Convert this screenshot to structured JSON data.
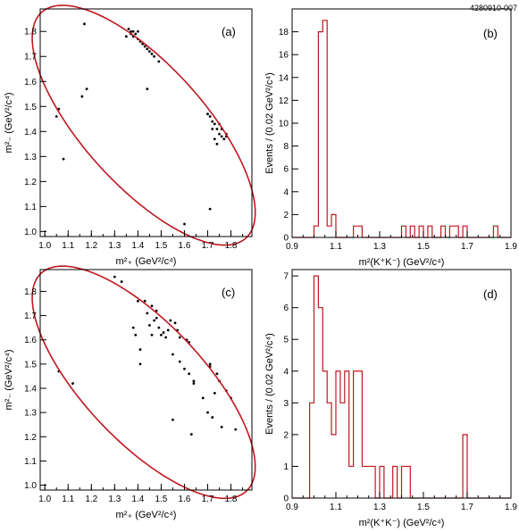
{
  "figure_id": "4280910-007",
  "chart_data": [
    {
      "panel": "(a)",
      "type": "scatter",
      "xlabel": "m²₊ (GeV²/c⁴)",
      "ylabel": "m²₋ (GeV²/c⁴)",
      "xlim": [
        0.98,
        1.89
      ],
      "ylim": [
        0.98,
        1.89
      ],
      "xticks": [
        "1.0",
        "1.1",
        "1.2",
        "1.3",
        "1.4",
        "1.5",
        "1.6",
        "1.7",
        "1.8"
      ],
      "yticks": [
        "1.0",
        "1.1",
        "1.2",
        "1.3",
        "1.4",
        "1.5",
        "1.6",
        "1.7",
        "1.8"
      ],
      "boundary_color": "#c0171f",
      "points": [
        [
          1.17,
          1.83
        ],
        [
          1.35,
          1.78
        ],
        [
          1.36,
          1.81
        ],
        [
          1.37,
          1.8
        ],
        [
          1.38,
          1.8
        ],
        [
          1.38,
          1.78
        ],
        [
          1.39,
          1.79
        ],
        [
          1.4,
          1.77
        ],
        [
          1.41,
          1.76
        ],
        [
          1.42,
          1.75
        ],
        [
          1.43,
          1.74
        ],
        [
          1.44,
          1.73
        ],
        [
          1.45,
          1.72
        ],
        [
          1.46,
          1.71
        ],
        [
          1.47,
          1.7
        ],
        [
          1.49,
          1.68
        ],
        [
          1.4,
          1.8
        ],
        [
          1.37,
          1.79
        ],
        [
          1.05,
          1.46
        ],
        [
          1.06,
          1.49
        ],
        [
          1.08,
          1.29
        ],
        [
          1.16,
          1.54
        ],
        [
          1.18,
          1.57
        ],
        [
          1.44,
          1.57
        ],
        [
          1.6,
          1.03
        ],
        [
          1.71,
          1.09
        ],
        [
          1.7,
          1.47
        ],
        [
          1.71,
          1.46
        ],
        [
          1.72,
          1.44
        ],
        [
          1.73,
          1.43
        ],
        [
          1.74,
          1.41
        ],
        [
          1.75,
          1.39
        ],
        [
          1.76,
          1.38
        ],
        [
          1.77,
          1.37
        ],
        [
          1.78,
          1.38
        ],
        [
          1.73,
          1.37
        ],
        [
          1.72,
          1.41
        ],
        [
          1.74,
          1.35
        ],
        [
          1.76,
          1.41
        ],
        [
          1.78,
          1.39
        ],
        [
          1.75,
          1.43
        ]
      ]
    },
    {
      "panel": "(b)",
      "type": "bar",
      "xlabel": "m²(K⁺K⁻) (GeV²/c⁴)",
      "ylabel": "Events / (0.02 GeV²/c⁴)",
      "xlim": [
        0.9,
        1.9
      ],
      "ylim": [
        0,
        20
      ],
      "xticks": [
        "0.9",
        "1.1",
        "1.3",
        "1.5",
        "1.7",
        "1.9"
      ],
      "yticks": [
        "0",
        "2",
        "4",
        "6",
        "8",
        "10",
        "12",
        "14",
        "16",
        "18"
      ],
      "bin_start": 0.9,
      "bin_width": 0.02,
      "counts": [
        0,
        0,
        0,
        0,
        0,
        1,
        18,
        19,
        1,
        2,
        0,
        0,
        0,
        0,
        1,
        1,
        0,
        0,
        0,
        0,
        0,
        0,
        0,
        0,
        0,
        1,
        0,
        1,
        0,
        1,
        0,
        1,
        0,
        0,
        1,
        0,
        1,
        1,
        0,
        1,
        0,
        0,
        0,
        0,
        0,
        0,
        1,
        0,
        0,
        0
      ]
    },
    {
      "panel": "(c)",
      "type": "scatter",
      "xlabel": "m²₊ (GeV²/c⁴)",
      "ylabel": "m²₋ (GeV²/c⁴)",
      "xlim": [
        0.98,
        1.89
      ],
      "ylim": [
        0.98,
        1.89
      ],
      "xticks": [
        "1.0",
        "1.1",
        "1.2",
        "1.3",
        "1.4",
        "1.5",
        "1.6",
        "1.7",
        "1.8"
      ],
      "yticks": [
        "1.0",
        "1.1",
        "1.2",
        "1.3",
        "1.4",
        "1.5",
        "1.6",
        "1.7",
        "1.8"
      ],
      "boundary_color": "#c0171f",
      "points": [
        [
          1.06,
          1.47
        ],
        [
          1.12,
          1.42
        ],
        [
          1.3,
          1.86
        ],
        [
          1.33,
          1.84
        ],
        [
          1.38,
          1.65
        ],
        [
          1.39,
          1.62
        ],
        [
          1.4,
          1.76
        ],
        [
          1.41,
          1.56
        ],
        [
          1.41,
          1.5
        ],
        [
          1.43,
          1.76
        ],
        [
          1.44,
          1.71
        ],
        [
          1.45,
          1.66
        ],
        [
          1.46,
          1.62
        ],
        [
          1.46,
          1.74
        ],
        [
          1.47,
          1.68
        ],
        [
          1.48,
          1.69
        ],
        [
          1.49,
          1.65
        ],
        [
          1.5,
          1.62
        ],
        [
          1.51,
          1.63
        ],
        [
          1.52,
          1.61
        ],
        [
          1.53,
          1.64
        ],
        [
          1.54,
          1.68
        ],
        [
          1.55,
          1.54
        ],
        [
          1.55,
          1.27
        ],
        [
          1.56,
          1.67
        ],
        [
          1.57,
          1.64
        ],
        [
          1.58,
          1.51
        ],
        [
          1.58,
          1.61
        ],
        [
          1.6,
          1.48
        ],
        [
          1.61,
          1.6
        ],
        [
          1.62,
          1.59
        ],
        [
          1.62,
          1.46
        ],
        [
          1.63,
          1.21
        ],
        [
          1.64,
          1.43
        ],
        [
          1.64,
          1.42
        ],
        [
          1.68,
          1.36
        ],
        [
          1.7,
          1.3
        ],
        [
          1.71,
          1.49
        ],
        [
          1.72,
          1.28
        ],
        [
          1.73,
          1.38
        ],
        [
          1.74,
          1.46
        ],
        [
          1.75,
          1.43
        ],
        [
          1.76,
          1.24
        ],
        [
          1.78,
          1.39
        ],
        [
          1.8,
          1.36
        ],
        [
          1.82,
          1.23
        ],
        [
          1.71,
          1.5
        ],
        [
          1.48,
          1.72
        ]
      ]
    },
    {
      "panel": "(d)",
      "type": "bar",
      "xlabel": "m²(K⁺K⁻) (GeV²/c⁴)",
      "ylabel": "Events / (0.02 GeV²/c⁴)",
      "xlim": [
        0.9,
        1.9
      ],
      "ylim": [
        0,
        7.2
      ],
      "xticks": [
        "0.9",
        "1.1",
        "1.3",
        "1.5",
        "1.7",
        "1.9"
      ],
      "yticks": [
        "0",
        "1",
        "2",
        "3",
        "4",
        "5",
        "6",
        "7"
      ],
      "bin_start": 0.9,
      "bin_width": 0.02,
      "counts": [
        0,
        0,
        0,
        0,
        3,
        7,
        6,
        4,
        3,
        2,
        4,
        3,
        4,
        1,
        4,
        4,
        1,
        1,
        1,
        0,
        1,
        0,
        0,
        1,
        0,
        1,
        1,
        0,
        0,
        0,
        0,
        0,
        0,
        0,
        0,
        0,
        0,
        0,
        0,
        2,
        0,
        0,
        0,
        0,
        0,
        0,
        0,
        0,
        0,
        0
      ]
    }
  ]
}
